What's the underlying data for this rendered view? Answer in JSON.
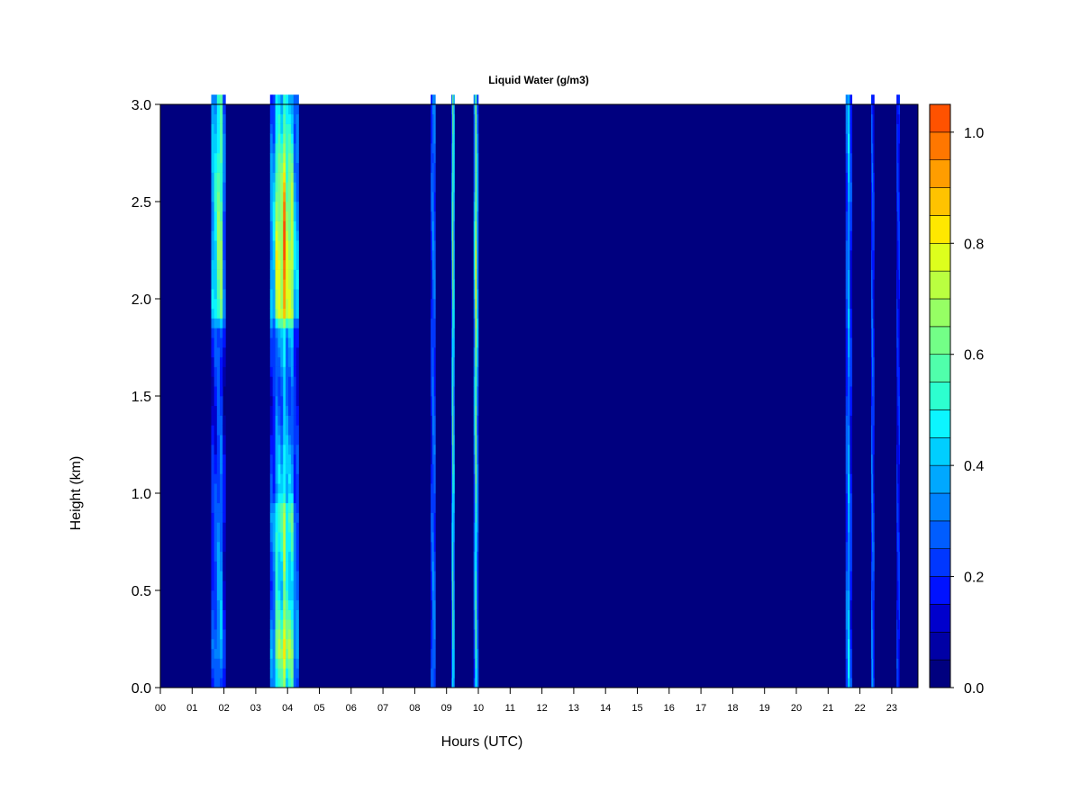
{
  "chart_data": {
    "type": "heatmap",
    "title": "Liquid Water (g/m3)",
    "xlabel": "Hours (UTC)",
    "ylabel": "Height (km)",
    "x_ticks": [
      "00",
      "01",
      "02",
      "03",
      "04",
      "05",
      "06",
      "07",
      "08",
      "09",
      "10",
      "11",
      "12",
      "13",
      "14",
      "15",
      "16",
      "17",
      "18",
      "19",
      "20",
      "21",
      "22",
      "23"
    ],
    "xlim": [
      0,
      23.85
    ],
    "y_ticks": [
      "0.0",
      "0.5",
      "1.0",
      "1.5",
      "2.0",
      "2.5",
      "3.0"
    ],
    "ylim": [
      0,
      3.0
    ],
    "colorbar": {
      "ticks": [
        "0.0",
        "0.2",
        "0.4",
        "0.6",
        "0.8",
        "1.0"
      ],
      "range": [
        0,
        1.05
      ],
      "levels": [
        0.0,
        0.05,
        0.1,
        0.15,
        0.2,
        0.25,
        0.3,
        0.35,
        0.4,
        0.45,
        0.5,
        0.55,
        0.6,
        0.65,
        0.7,
        0.75,
        0.8,
        0.85,
        0.9,
        0.95,
        1.0,
        1.05
      ],
      "colors": [
        "#00007f",
        "#0000a5",
        "#0000cc",
        "#0012ff",
        "#0037ff",
        "#005dff",
        "#0083ff",
        "#00a8ff",
        "#00ceff",
        "#0cf5ff",
        "#2dffcf",
        "#50ffab",
        "#73ff87",
        "#96ff64",
        "#baff40",
        "#ddff1d",
        "#ffe800",
        "#ffc300",
        "#ff9d00",
        "#ff7700",
        "#ff5200",
        "#ff2c00",
        "#e60000",
        "#bf0000",
        "#990000",
        "#7f0000"
      ]
    },
    "cloud_bands": [
      {
        "x": [
          1.6,
          2.05
        ],
        "profile": [
          [
            0.0,
            0.3
          ],
          [
            0.2,
            0.45
          ],
          [
            0.5,
            0.4
          ],
          [
            1.0,
            0.35
          ],
          [
            1.5,
            0.25
          ],
          [
            1.85,
            0.35
          ],
          [
            1.9,
            0.7
          ],
          [
            2.2,
            0.75
          ],
          [
            2.6,
            0.7
          ],
          [
            3.0,
            0.6
          ]
        ]
      },
      {
        "x": [
          3.45,
          4.35
        ],
        "profile": [
          [
            0.0,
            0.65
          ],
          [
            0.2,
            0.9
          ],
          [
            0.5,
            0.6
          ],
          [
            0.9,
            0.75
          ],
          [
            1.0,
            0.5
          ],
          [
            1.1,
            0.55
          ],
          [
            1.5,
            0.35
          ],
          [
            1.85,
            0.5
          ],
          [
            1.9,
            0.95
          ],
          [
            2.2,
            1.0
          ],
          [
            2.5,
            0.9
          ],
          [
            2.8,
            0.7
          ],
          [
            3.0,
            0.55
          ]
        ]
      },
      {
        "x": [
          8.5,
          8.65
        ],
        "profile": [
          [
            0.0,
            0.4
          ],
          [
            1.5,
            0.35
          ],
          [
            3.0,
            0.4
          ]
        ]
      },
      {
        "x": [
          9.15,
          9.25
        ],
        "profile": [
          [
            0.0,
            0.55
          ],
          [
            1.9,
            0.6
          ],
          [
            2.5,
            0.7
          ],
          [
            3.0,
            0.6
          ]
        ]
      },
      {
        "x": [
          9.85,
          10.0
        ],
        "profile": [
          [
            0.0,
            0.5
          ],
          [
            1.0,
            0.55
          ],
          [
            2.2,
            0.75
          ],
          [
            3.0,
            0.55
          ]
        ]
      },
      {
        "x": [
          21.55,
          21.75
        ],
        "profile": [
          [
            0.0,
            0.45
          ],
          [
            1.5,
            0.35
          ],
          [
            2.5,
            0.4
          ],
          [
            3.0,
            0.45
          ]
        ]
      },
      {
        "x": [
          22.35,
          22.45
        ],
        "profile": [
          [
            0.0,
            0.4
          ],
          [
            1.5,
            0.35
          ],
          [
            3.0,
            0.3
          ]
        ]
      },
      {
        "x": [
          23.15,
          23.25
        ],
        "profile": [
          [
            0.0,
            0.3
          ],
          [
            1.5,
            0.25
          ],
          [
            3.0,
            0.3
          ]
        ]
      }
    ]
  }
}
